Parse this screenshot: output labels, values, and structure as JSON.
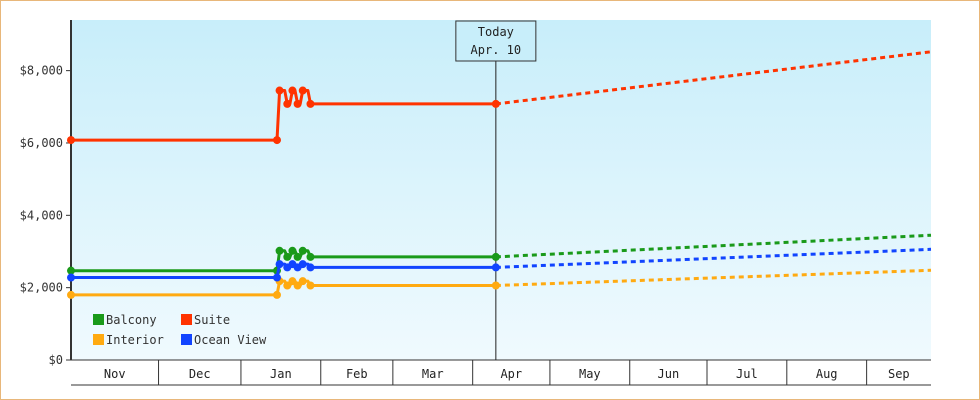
{
  "chart_data": {
    "type": "line",
    "title": "",
    "xlabel": "",
    "ylabel": "",
    "ylim": [
      0,
      9400
    ],
    "y_ticks": [
      "$0",
      "$2,000",
      "$4,000",
      "$6,000",
      "$8,000"
    ],
    "y_tick_values": [
      0,
      2000,
      4000,
      6000,
      8000
    ],
    "x_range": [
      "2020-10-27",
      "2021-09-26"
    ],
    "months": [
      {
        "label": "Nov",
        "start": "2020-10-27",
        "end": "2020-11-30"
      },
      {
        "label": "Dec",
        "start": "2020-11-30",
        "end": "2021-01-01"
      },
      {
        "label": "Jan",
        "start": "2021-01-01",
        "end": "2021-02-01"
      },
      {
        "label": "Feb",
        "start": "2021-02-01",
        "end": "2021-03-01"
      },
      {
        "label": "Mar",
        "start": "2021-03-01",
        "end": "2021-04-01"
      },
      {
        "label": "Apr",
        "start": "2021-04-01",
        "end": "2021-05-01"
      },
      {
        "label": "May",
        "start": "2021-05-01",
        "end": "2021-06-01"
      },
      {
        "label": "Jun",
        "start": "2021-06-01",
        "end": "2021-07-01"
      },
      {
        "label": "Jul",
        "start": "2021-07-01",
        "end": "2021-08-01"
      },
      {
        "label": "Aug",
        "start": "2021-08-01",
        "end": "2021-09-01"
      },
      {
        "label": "Sep",
        "start": "2021-09-01",
        "end": "2021-09-26"
      }
    ],
    "today": {
      "date": "2021-04-10",
      "line1": "Today",
      "line2": "Apr. 10"
    },
    "legend_position": "bottom-left",
    "grid": false,
    "series": [
      {
        "name": "Balcony",
        "color": "#1a9a1a",
        "points": [
          [
            "2020-10-27",
            2470
          ],
          [
            "2021-01-15",
            2470
          ],
          [
            "2021-01-16",
            3020
          ],
          [
            "2021-01-18",
            3020
          ],
          [
            "2021-01-19",
            2850
          ],
          [
            "2021-01-20",
            2850
          ],
          [
            "2021-01-21",
            3020
          ],
          [
            "2021-01-22",
            3020
          ],
          [
            "2021-01-23",
            2850
          ],
          [
            "2021-01-24",
            2850
          ],
          [
            "2021-01-25",
            3020
          ],
          [
            "2021-01-27",
            3020
          ],
          [
            "2021-01-28",
            2850
          ],
          [
            "2021-04-10",
            2850
          ]
        ],
        "markers": [
          [
            "2020-10-27",
            2470
          ],
          [
            "2021-01-15",
            2470
          ],
          [
            "2021-01-16",
            3020
          ],
          [
            "2021-01-19",
            2850
          ],
          [
            "2021-01-21",
            3020
          ],
          [
            "2021-01-23",
            2850
          ],
          [
            "2021-01-25",
            3020
          ],
          [
            "2021-01-28",
            2850
          ],
          [
            "2021-04-10",
            2850
          ]
        ],
        "forecast": [
          [
            "2021-04-10",
            2850
          ],
          [
            "2021-09-26",
            3450
          ]
        ]
      },
      {
        "name": "Suite",
        "color": "#ff3300",
        "points": [
          [
            "2020-10-27",
            6080
          ],
          [
            "2021-01-15",
            6080
          ],
          [
            "2021-01-16",
            7450
          ],
          [
            "2021-01-18",
            7450
          ],
          [
            "2021-01-19",
            7080
          ],
          [
            "2021-01-20",
            7080
          ],
          [
            "2021-01-21",
            7450
          ],
          [
            "2021-01-22",
            7450
          ],
          [
            "2021-01-23",
            7080
          ],
          [
            "2021-01-24",
            7080
          ],
          [
            "2021-01-25",
            7450
          ],
          [
            "2021-01-27",
            7450
          ],
          [
            "2021-01-28",
            7080
          ],
          [
            "2021-04-10",
            7080
          ]
        ],
        "markers": [
          [
            "2020-10-27",
            6080
          ],
          [
            "2021-01-15",
            6080
          ],
          [
            "2021-01-16",
            7450
          ],
          [
            "2021-01-19",
            7080
          ],
          [
            "2021-01-21",
            7450
          ],
          [
            "2021-01-23",
            7080
          ],
          [
            "2021-01-25",
            7450
          ],
          [
            "2021-01-28",
            7080
          ],
          [
            "2021-04-10",
            7080
          ]
        ],
        "forecast": [
          [
            "2021-04-10",
            7080
          ],
          [
            "2021-09-26",
            8520
          ]
        ]
      },
      {
        "name": "Interior",
        "color": "#ffaa11",
        "points": [
          [
            "2020-10-27",
            1800
          ],
          [
            "2021-01-15",
            1800
          ],
          [
            "2021-01-16",
            2180
          ],
          [
            "2021-01-18",
            2180
          ],
          [
            "2021-01-19",
            2060
          ],
          [
            "2021-01-20",
            2060
          ],
          [
            "2021-01-21",
            2180
          ],
          [
            "2021-01-22",
            2180
          ],
          [
            "2021-01-23",
            2060
          ],
          [
            "2021-01-24",
            2060
          ],
          [
            "2021-01-25",
            2180
          ],
          [
            "2021-01-27",
            2180
          ],
          [
            "2021-01-28",
            2060
          ],
          [
            "2021-04-10",
            2060
          ]
        ],
        "markers": [
          [
            "2020-10-27",
            1800
          ],
          [
            "2021-01-15",
            1800
          ],
          [
            "2021-01-16",
            2180
          ],
          [
            "2021-01-19",
            2060
          ],
          [
            "2021-01-21",
            2180
          ],
          [
            "2021-01-23",
            2060
          ],
          [
            "2021-01-25",
            2180
          ],
          [
            "2021-01-28",
            2060
          ],
          [
            "2021-04-10",
            2060
          ]
        ],
        "forecast": [
          [
            "2021-04-10",
            2060
          ],
          [
            "2021-09-26",
            2480
          ]
        ]
      },
      {
        "name": "Ocean View",
        "color": "#1144ff",
        "points": [
          [
            "2020-10-27",
            2280
          ],
          [
            "2021-01-15",
            2280
          ],
          [
            "2021-01-16",
            2650
          ],
          [
            "2021-01-18",
            2650
          ],
          [
            "2021-01-19",
            2560
          ],
          [
            "2021-01-20",
            2560
          ],
          [
            "2021-01-21",
            2650
          ],
          [
            "2021-01-22",
            2650
          ],
          [
            "2021-01-23",
            2560
          ],
          [
            "2021-01-24",
            2560
          ],
          [
            "2021-01-25",
            2650
          ],
          [
            "2021-01-27",
            2650
          ],
          [
            "2021-01-28",
            2560
          ],
          [
            "2021-04-10",
            2560
          ]
        ],
        "markers": [
          [
            "2020-10-27",
            2280
          ],
          [
            "2021-01-15",
            2280
          ],
          [
            "2021-01-16",
            2650
          ],
          [
            "2021-01-19",
            2560
          ],
          [
            "2021-01-21",
            2650
          ],
          [
            "2021-01-23",
            2560
          ],
          [
            "2021-01-25",
            2650
          ],
          [
            "2021-01-28",
            2560
          ],
          [
            "2021-04-10",
            2560
          ]
        ],
        "forecast": [
          [
            "2021-04-10",
            2560
          ],
          [
            "2021-09-26",
            3060
          ]
        ]
      }
    ],
    "legend_order": [
      "Balcony",
      "Suite",
      "Interior",
      "Ocean View"
    ]
  }
}
